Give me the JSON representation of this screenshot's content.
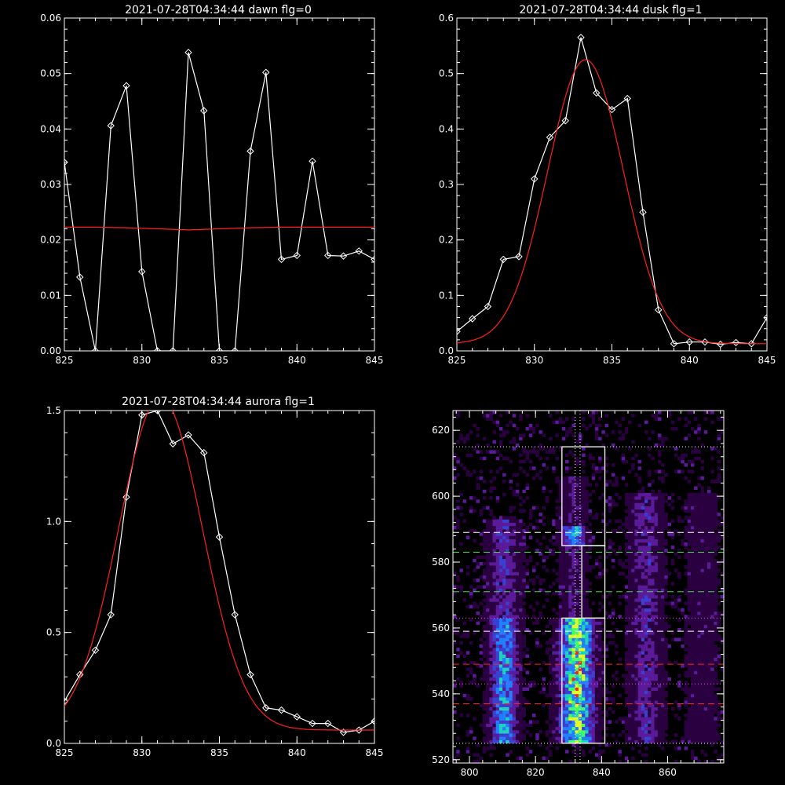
{
  "chart_data": [
    {
      "type": "line",
      "title": "2021-07-28T04:34:44 dawn flg=0",
      "xlim": [
        825,
        845
      ],
      "ylim": [
        0,
        0.06
      ],
      "xticks": [
        825,
        830,
        835,
        840,
        845
      ],
      "yticks": [
        0.0,
        0.01,
        0.02,
        0.03,
        0.04,
        0.05,
        0.06
      ],
      "ytick_labels": [
        "0.00",
        "0.01",
        "0.02",
        "0.03",
        "0.04",
        "0.05",
        "0.06"
      ],
      "series": [
        {
          "color": "#ffffff",
          "marker": "diamond",
          "x": [
            825,
            826,
            827,
            828,
            829,
            830,
            831,
            832,
            833,
            834,
            835,
            836,
            837,
            838,
            839,
            840,
            841,
            842,
            843,
            844,
            845
          ],
          "y": [
            0.034,
            0.0133,
            0.0,
            0.0406,
            0.0478,
            0.0143,
            0.0,
            0.0,
            0.0538,
            0.0433,
            0.0,
            0.0,
            0.036,
            0.0502,
            0.0165,
            0.0172,
            0.0342,
            0.0172,
            0.0171,
            0.018,
            0.0165
          ]
        },
        {
          "color": "#ff2020",
          "marker": "none",
          "x": [
            825,
            827,
            829,
            831,
            833,
            835,
            837,
            839,
            841,
            843,
            845
          ],
          "y": [
            0.0223,
            0.0223,
            0.0222,
            0.022,
            0.0218,
            0.022,
            0.0222,
            0.0223,
            0.0223,
            0.0223,
            0.0223
          ]
        }
      ]
    },
    {
      "type": "line",
      "title": "2021-07-28T04:34:44 dusk flg=1",
      "xlim": [
        825,
        845
      ],
      "ylim": [
        0,
        0.6
      ],
      "xticks": [
        825,
        830,
        835,
        840,
        845
      ],
      "yticks": [
        0.0,
        0.1,
        0.2,
        0.3,
        0.4,
        0.5,
        0.6
      ],
      "ytick_labels": [
        "0.0",
        "0.1",
        "0.2",
        "0.3",
        "0.4",
        "0.5",
        "0.6"
      ],
      "series": [
        {
          "color": "#ffffff",
          "marker": "diamond",
          "x": [
            825,
            826,
            827,
            828,
            829,
            830,
            831,
            832,
            833,
            834,
            835,
            836,
            837,
            838,
            839,
            840,
            841,
            842,
            843,
            844,
            845
          ],
          "y": [
            0.035,
            0.058,
            0.08,
            0.165,
            0.17,
            0.31,
            0.385,
            0.415,
            0.565,
            0.465,
            0.435,
            0.455,
            0.25,
            0.074,
            0.013,
            0.016,
            0.016,
            0.012,
            0.015,
            0.013,
            0.06
          ]
        },
        {
          "color": "#ff2020",
          "marker": "none",
          "curve": "gaussian",
          "amplitude": 0.512,
          "center": 833.3,
          "sigma": 2.45,
          "offset": 0.013
        }
      ]
    },
    {
      "type": "line",
      "title": "2021-07-28T04:34:44 aurora flg=1",
      "xlim": [
        825,
        845
      ],
      "ylim": [
        0,
        1.5
      ],
      "xticks": [
        825,
        830,
        835,
        840,
        845
      ],
      "yticks": [
        0.0,
        0.5,
        1.0,
        1.5
      ],
      "ytick_labels": [
        "0.0",
        "0.5",
        "1.0",
        "1.5"
      ],
      "series": [
        {
          "color": "#ffffff",
          "marker": "diamond",
          "x": [
            825,
            826,
            827,
            828,
            829,
            830,
            831,
            832,
            833,
            834,
            835,
            836,
            837,
            838,
            839,
            840,
            841,
            842,
            843,
            844,
            845
          ],
          "y": [
            0.19,
            0.31,
            0.42,
            0.58,
            1.11,
            1.48,
            1.5,
            1.35,
            1.39,
            1.31,
            0.93,
            0.58,
            0.31,
            0.16,
            0.15,
            0.12,
            0.09,
            0.09,
            0.05,
            0.06,
            0.1
          ]
        },
        {
          "color": "#ff2020",
          "marker": "none",
          "curve": "gaussian",
          "amplitude": 1.5,
          "center": 831.2,
          "sigma": 2.7,
          "offset": 0.06
        }
      ]
    },
    {
      "type": "heatmap",
      "title": "",
      "xlim": [
        795,
        877
      ],
      "ylim": [
        519,
        626
      ],
      "xticks": [
        800,
        820,
        840,
        860
      ],
      "yticks": [
        520,
        540,
        560,
        580,
        600,
        620
      ],
      "colormap": [
        "#000000",
        "#2a0040",
        "#5a1a9a",
        "#3a40d0",
        "#2080ff",
        "#20d0c0",
        "#40ff60",
        "#e0ff20",
        "#ff2020"
      ],
      "bands": [
        {
          "x_center": 810,
          "x_width": 5,
          "y_from": 525,
          "y_to": 562,
          "level": 0.55
        },
        {
          "x_center": 810,
          "x_width": 6,
          "y_from": 562,
          "y_to": 592,
          "level": 0.3
        },
        {
          "x_center": 832,
          "x_width": 6,
          "y_from": 525,
          "y_to": 562,
          "level": 0.8
        },
        {
          "x_center": 831,
          "x_width": 4,
          "y_from": 585,
          "y_to": 590,
          "level": 0.6
        },
        {
          "x_center": 831,
          "x_width": 5,
          "y_from": 562,
          "y_to": 605,
          "level": 0.2
        },
        {
          "x_center": 853,
          "x_width": 6,
          "y_from": 525,
          "y_to": 600,
          "level": 0.28
        },
        {
          "x_center": 870,
          "x_width": 6,
          "y_from": 525,
          "y_to": 600,
          "level": 0.15
        }
      ],
      "hotspots": [
        {
          "x": 832,
          "y": 533,
          "level": 1.0
        },
        {
          "x": 831,
          "y": 558,
          "level": 1.0
        },
        {
          "x": 832,
          "y": 554,
          "level": 0.9
        },
        {
          "x": 830,
          "y": 545,
          "level": 0.85
        }
      ],
      "boxes": [
        {
          "x0": 828,
          "x1": 841,
          "y0": 525,
          "y1": 563
        },
        {
          "x0": 834,
          "x1": 841,
          "y0": 563,
          "y1": 585
        },
        {
          "x0": 828,
          "x1": 834,
          "y0": 585,
          "y1": 615
        },
        {
          "x0": 828,
          "x1": 841,
          "y0": 585,
          "y1": 615
        }
      ],
      "hlines": [
        {
          "y": 615,
          "color": "#ffffff",
          "style": "dotted"
        },
        {
          "y": 589,
          "color": "#ffffff",
          "style": "dashed"
        },
        {
          "y": 583,
          "color": "#40e040",
          "style": "dashed"
        },
        {
          "y": 571,
          "color": "#40e040",
          "style": "dashed"
        },
        {
          "y": 563,
          "color": "#ff40ff",
          "style": "dotted"
        },
        {
          "y": 559,
          "color": "#ffffff",
          "style": "dashed"
        },
        {
          "y": 549,
          "color": "#ff2020",
          "style": "dashed"
        },
        {
          "y": 537,
          "color": "#ff2020",
          "style": "dashed"
        },
        {
          "y": 543,
          "color": "#ff40ff",
          "style": "dotted"
        },
        {
          "y": 525,
          "color": "#ffffff",
          "style": "dotted"
        }
      ],
      "vlines": [
        {
          "x": 832,
          "color": "#ffffff",
          "style": "dotted"
        },
        {
          "x": 833.5,
          "color": "#ffffff",
          "style": "dotted"
        }
      ]
    }
  ]
}
